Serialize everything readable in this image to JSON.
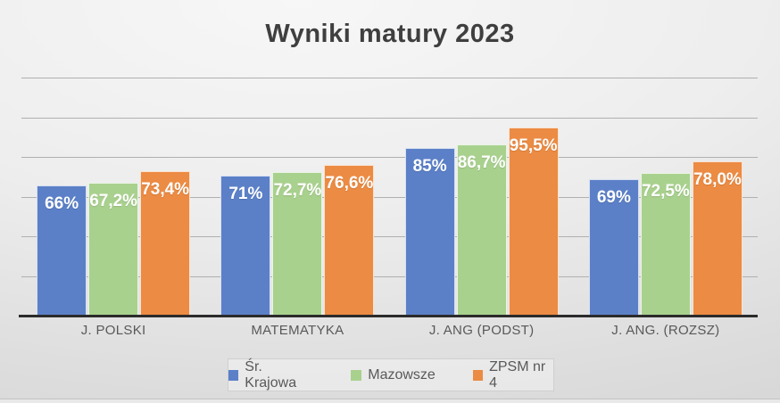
{
  "chart_data": {
    "type": "bar",
    "title": "Wyniki matury 2023",
    "categories": [
      "J. POLSKI",
      "MATEMATYKA",
      "J. ANG (PODST)",
      "J. ANG. (ROZSZ)"
    ],
    "series": [
      {
        "name": "Śr. Krajowa",
        "color": "#5b80c8",
        "values": [
          66,
          71,
          85,
          69
        ],
        "labels": [
          "66%",
          "71%",
          "85%",
          "69%"
        ]
      },
      {
        "name": "Mazowsze",
        "color": "#a9d18e",
        "values": [
          67.2,
          72.7,
          86.7,
          72.5
        ],
        "labels": [
          "67,2%",
          "72,7%",
          "86,7%",
          "72,5%"
        ]
      },
      {
        "name": "ZPSM nr 4",
        "color": "#ec8b43",
        "values": [
          73.4,
          76.6,
          95.5,
          78.0
        ],
        "labels": [
          "73,4%",
          "76,6%",
          "95,5%",
          "78,0%"
        ]
      }
    ],
    "xlabel": "",
    "ylabel": "",
    "ylim": [
      0,
      120
    ],
    "grid_step": 20,
    "grid": true,
    "y_tick_labels_visible": false,
    "legend_position": "bottom",
    "value_label_position": "inside-end"
  }
}
